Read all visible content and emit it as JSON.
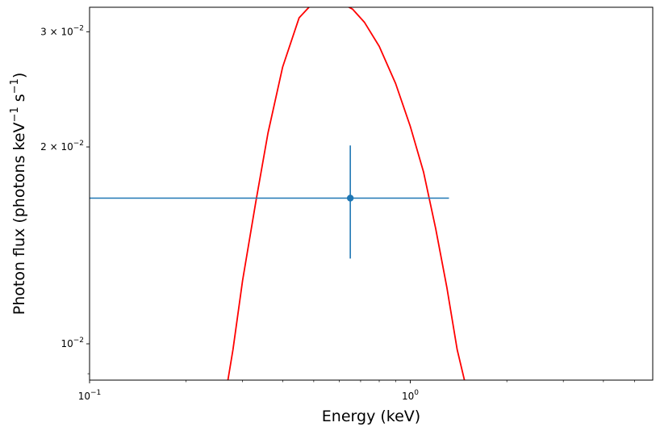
{
  "chart_data": {
    "type": "scatter",
    "xlabel": "Energy (keV)",
    "ylabel": {
      "prefix": "Photon flux (photons keV",
      "exp1": "−1",
      "mid": " s",
      "exp2": "−1",
      "suffix": ")"
    },
    "xscale": "log",
    "yscale": "log",
    "xlim": [
      0.1,
      5.7
    ],
    "ylim": [
      0.0088,
      0.0327
    ],
    "x_ticks": [
      {
        "value": 0.1,
        "base": "10",
        "exp": "−1"
      },
      {
        "value": 1.0,
        "base": "10",
        "exp": "0"
      }
    ],
    "y_ticks": [
      {
        "value": 0.01,
        "base": "10",
        "exp": "−2",
        "mantissa": ""
      },
      {
        "value": 0.02,
        "base": "10",
        "exp": "−2",
        "mantissa": "2 × "
      },
      {
        "value": 0.03,
        "base": "10",
        "exp": "−2",
        "mantissa": "3 × "
      }
    ],
    "data_point": {
      "x": 0.65,
      "y": 0.0167,
      "x_err": [
        0.1,
        1.32
      ],
      "y_err": [
        0.0135,
        0.0201
      ],
      "color": "#1f77b4"
    },
    "model": {
      "color": "#ff0000",
      "x": [
        0.27,
        0.28,
        0.3,
        0.33,
        0.36,
        0.4,
        0.45,
        0.5,
        0.55,
        0.6,
        0.66,
        0.72,
        0.8,
        0.9,
        1.0,
        1.1,
        1.2,
        1.3,
        1.4,
        1.5
      ],
      "y": [
        0.0088,
        0.0098,
        0.0125,
        0.0165,
        0.021,
        0.0265,
        0.0315,
        0.0333,
        0.0335,
        0.0333,
        0.0325,
        0.031,
        0.0285,
        0.025,
        0.0215,
        0.0183,
        0.015,
        0.0122,
        0.0098,
        0.0085
      ]
    },
    "grid": false
  }
}
